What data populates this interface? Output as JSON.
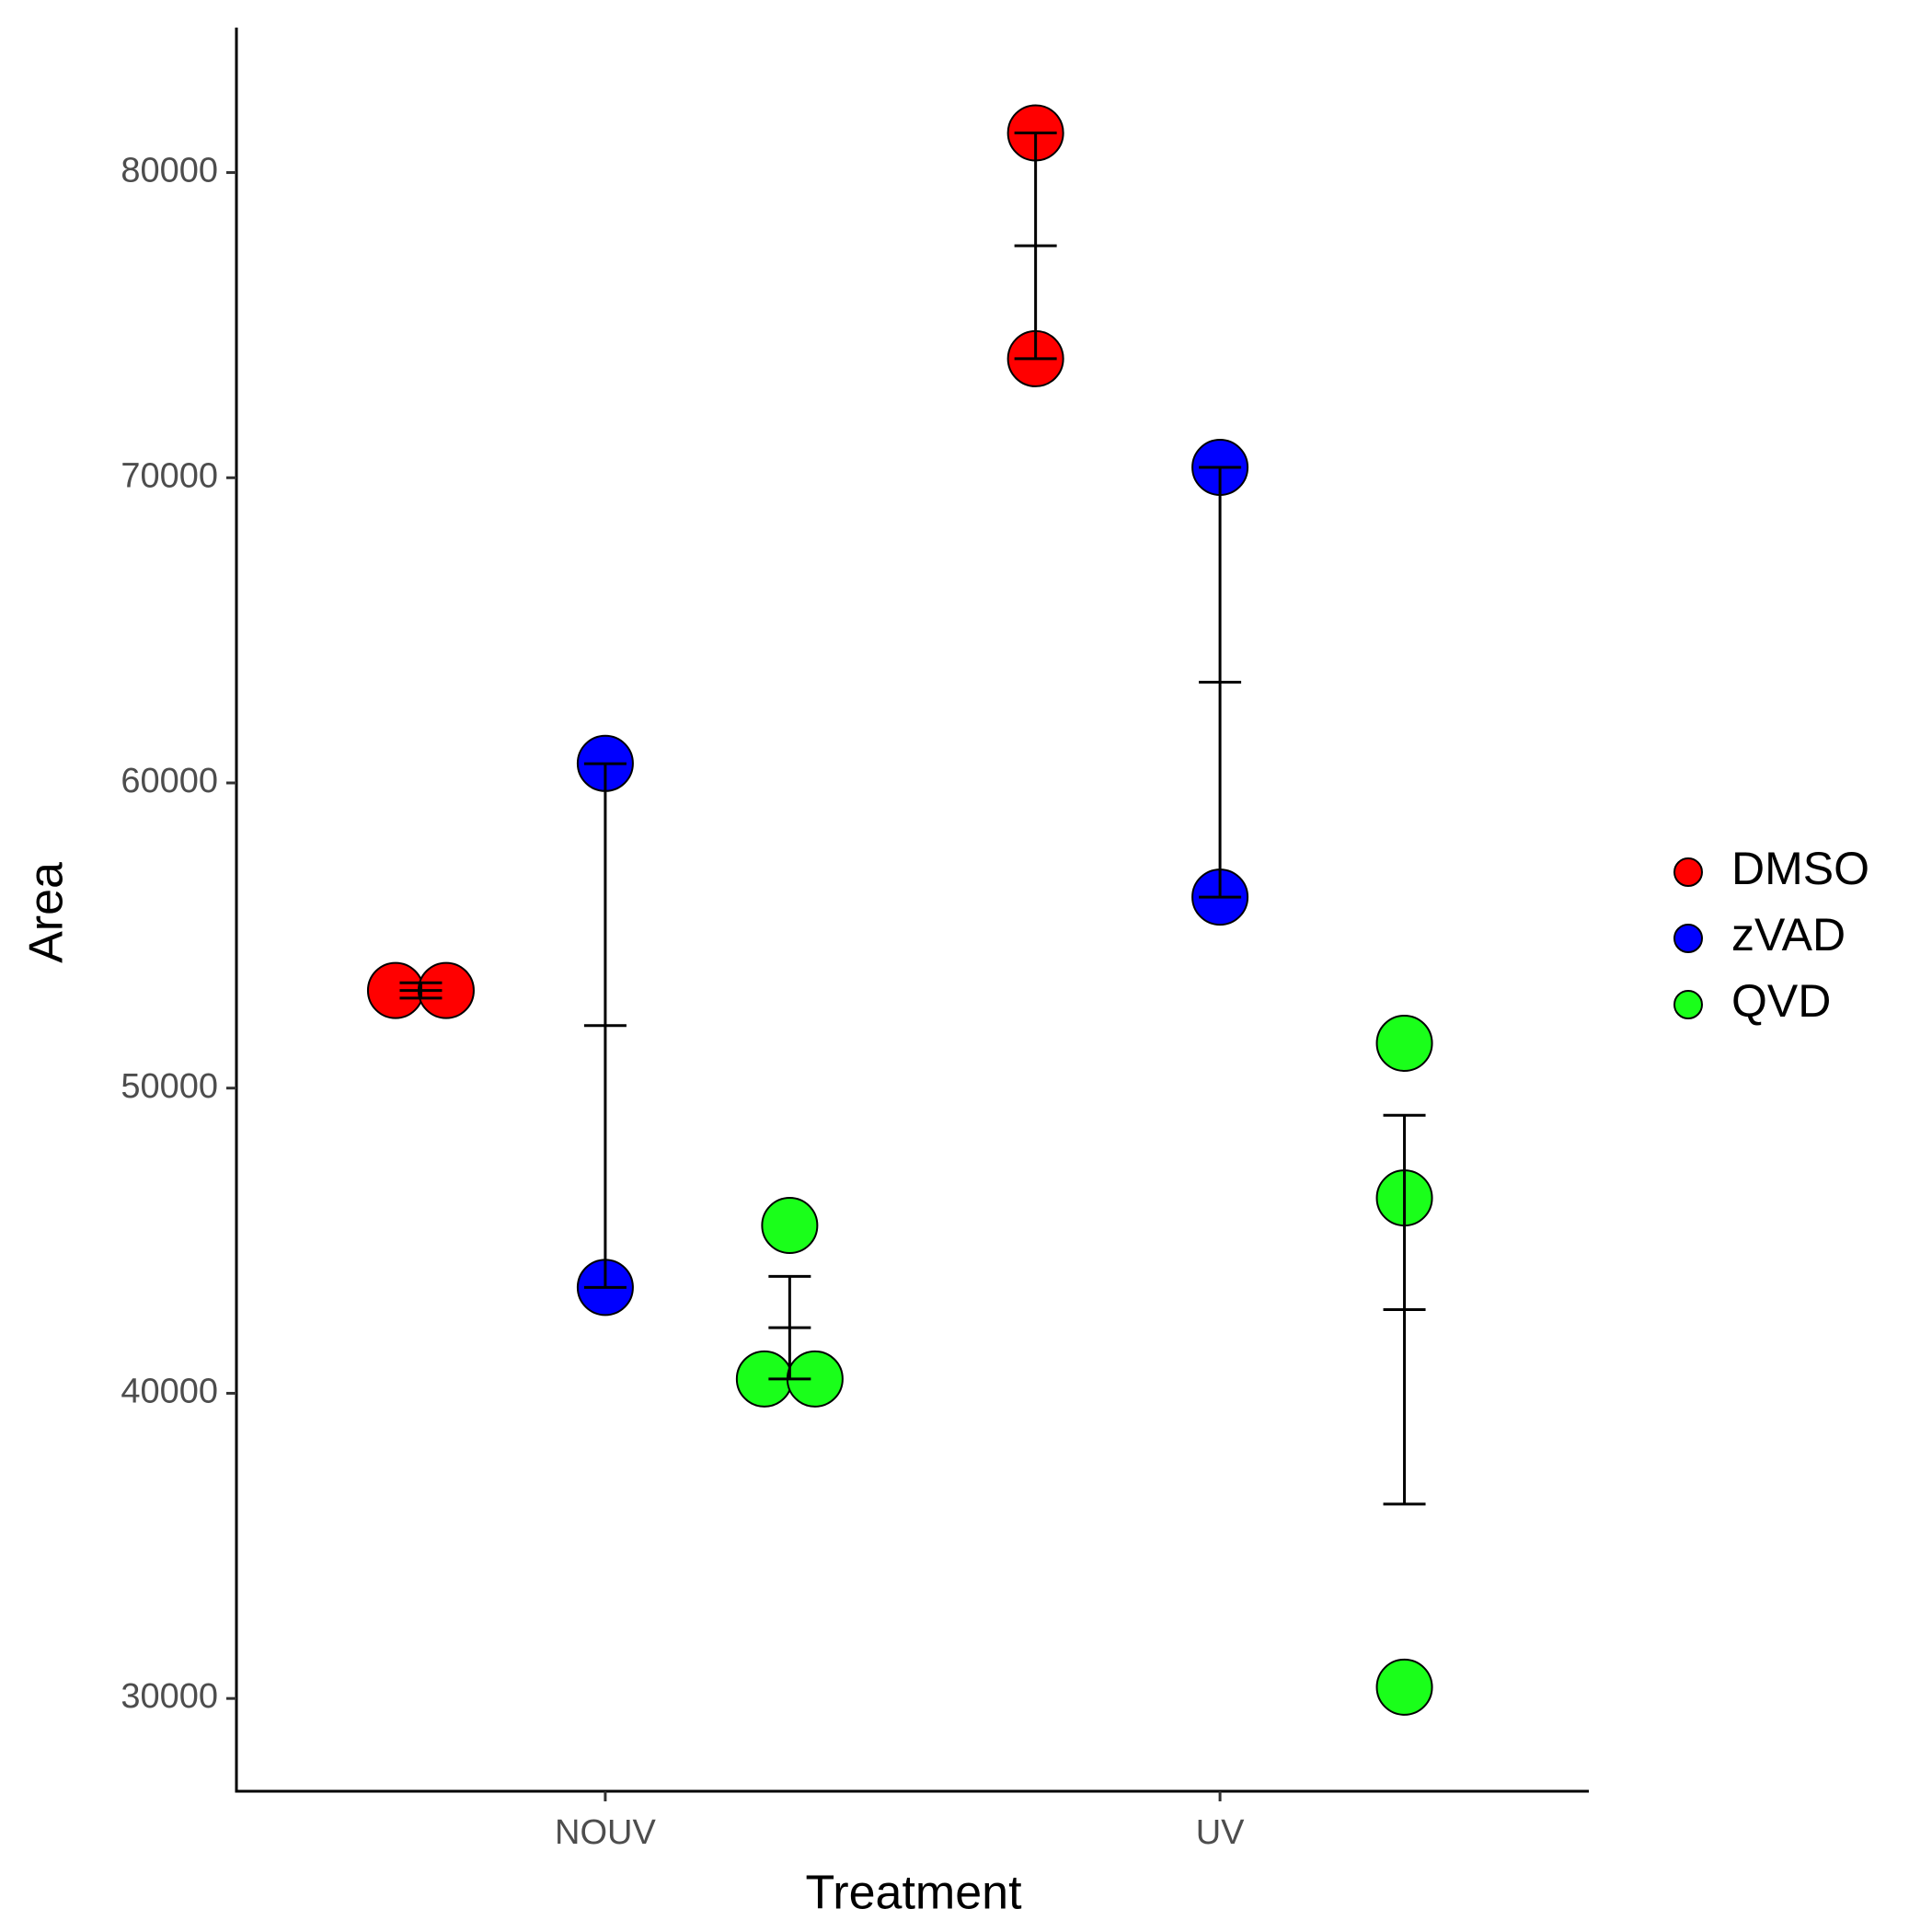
{
  "chart_data": {
    "type": "dot_errorbar",
    "x_label": "Treatment",
    "y_label": "Area",
    "categories": [
      "NOUV",
      "UV"
    ],
    "series": [
      {
        "name": "DMSO",
        "color": "#ff0000",
        "values": [
          [
            53200,
            53200
          ],
          [
            81300,
            73900
          ]
        ],
        "means": [
          53200,
          77600
        ],
        "errors": [
          250,
          3700
        ]
      },
      {
        "name": "zVAD",
        "color": "#0000ff",
        "values": [
          [
            60640,
            43470
          ],
          [
            70340,
            56260
          ]
        ],
        "means": [
          52050,
          63300
        ],
        "errors": [
          8580,
          7040
        ]
      },
      {
        "name": "QVD",
        "color": "#1aff1a",
        "values": [
          [
            45500,
            40470,
            40470
          ],
          [
            51470,
            46400,
            30370
          ]
        ],
        "means": [
          42150,
          42740
        ],
        "errors": [
          1680,
          6370
        ]
      }
    ],
    "ylim": [
      26960,
      84750
    ],
    "yticks": [
      30000,
      40000,
      50000,
      60000,
      70000,
      80000
    ],
    "legend": "right",
    "grid": false
  }
}
